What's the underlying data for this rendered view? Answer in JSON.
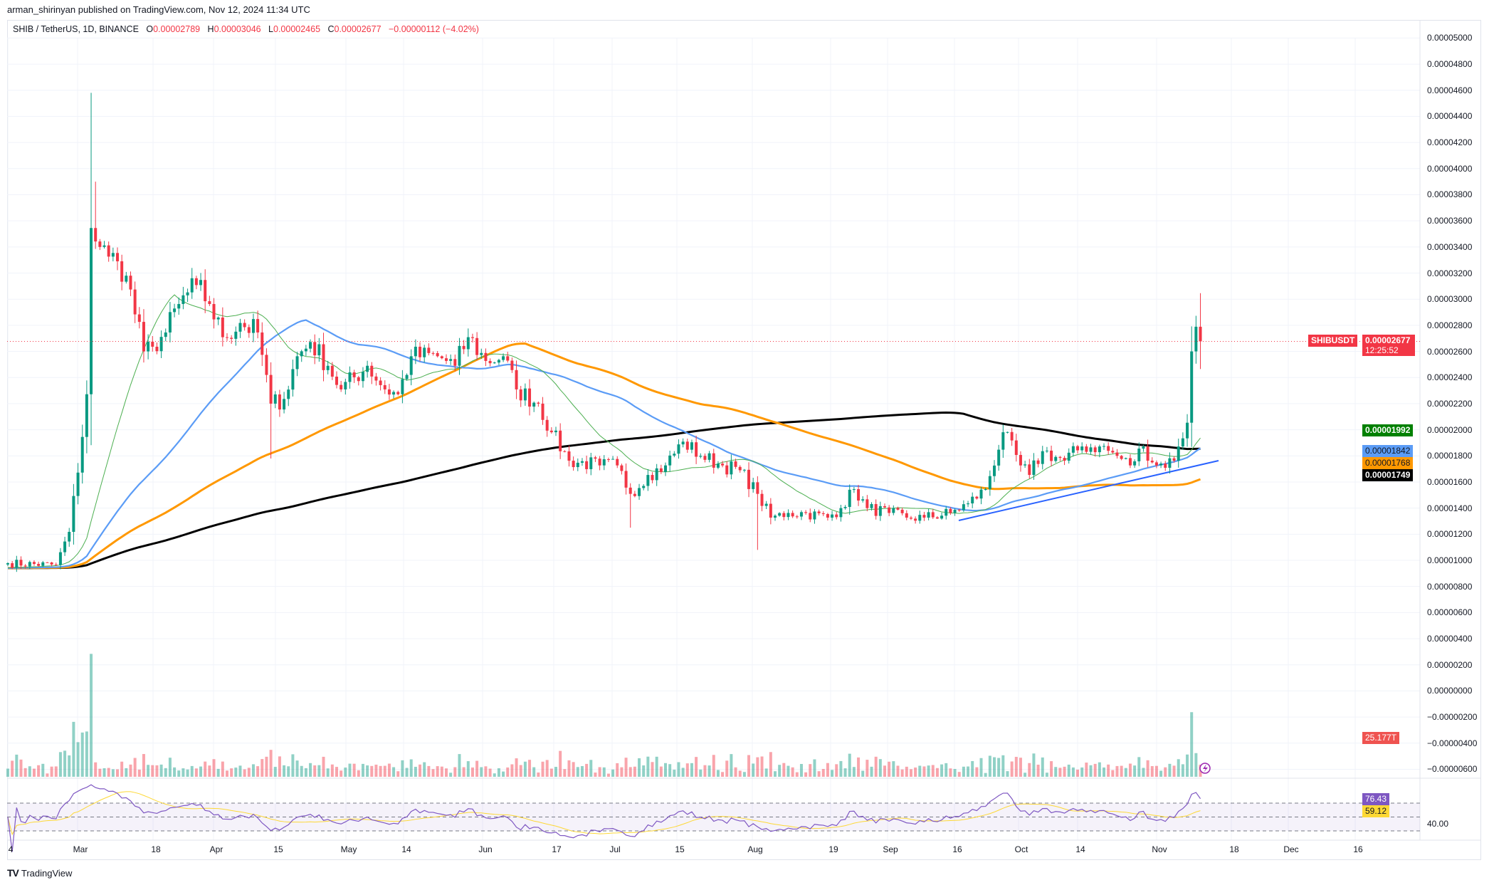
{
  "publisher": "arman_shirinyan published on TradingView.com, Nov 12, 2024 11:34 UTC",
  "legend": {
    "symbol": "SHIB / TetherUS, 1D, BINANCE",
    "o_label": "O",
    "open": "0.00002789",
    "h_label": "H",
    "high": "0.00003046",
    "l_label": "L",
    "low": "0.00002465",
    "c_label": "C",
    "close": "0.00002677",
    "change": "−0.00000112 (−4.02%)"
  },
  "price_axis": [
    "0.00005000",
    "0.00004800",
    "0.00004600",
    "0.00004400",
    "0.00004200",
    "0.00004000",
    "0.00003800",
    "0.00003600",
    "0.00003400",
    "0.00003200",
    "0.00003000",
    "0.00002800",
    "0.00002600",
    "0.00002400",
    "0.00002200",
    "0.00002000",
    "0.00001800",
    "0.00001600",
    "0.00001400",
    "0.00001200",
    "0.00001000",
    "0.00000800",
    "0.00000600",
    "0.00000400",
    "0.00000200",
    "0.00000000",
    "−0.00000200",
    "−0.00000400",
    "−0.00000600"
  ],
  "date_axis": [
    "4",
    "Mar",
    "18",
    "Apr",
    "15",
    "May",
    "14",
    "Jun",
    "17",
    "Jul",
    "15",
    "Aug",
    "19",
    "Sep",
    "16",
    "Oct",
    "14",
    "Nov",
    "18",
    "Dec",
    "16"
  ],
  "tags": {
    "symbol": "SHIBUSDT",
    "last_price": "0.00002677",
    "countdown": "12:25:52",
    "ma20": "0.00001992",
    "ma50": "0.00001842",
    "ma100": "0.00001768",
    "ma200": "0.00001749",
    "volume": "25.177T",
    "rsi": "76.43",
    "rsi_ma": "59.12",
    "rsi_level": "40.00"
  },
  "colors": {
    "up": "#089981",
    "down": "#f23645",
    "ma20": "#4caf50",
    "ma50": "#5b9cf6",
    "ma100": "#ff9800",
    "ma200": "#000000",
    "rsi": "#7e57c2",
    "rsi_ma": "#fdd835",
    "trendline": "#2962ff"
  },
  "footer": "TradingView",
  "chart_data": {
    "type": "candlestick",
    "title": "SHIB / TetherUS, 1D, BINANCE",
    "units": "price x 1e-8 USDT",
    "anchors_day_close": [
      [
        0,
        978
      ],
      [
        11,
        964
      ],
      [
        14,
        1218
      ],
      [
        17,
        1945
      ],
      [
        18,
        2272
      ],
      [
        19,
        3545
      ],
      [
        21,
        3400
      ],
      [
        23,
        3326
      ],
      [
        25,
        3290
      ],
      [
        27,
        3180
      ],
      [
        31,
        2600
      ],
      [
        33,
        2636
      ],
      [
        36,
        2745
      ],
      [
        39,
        2963
      ],
      [
        43,
        3108
      ],
      [
        46,
        2963
      ],
      [
        49,
        2709
      ],
      [
        53,
        2818
      ],
      [
        57,
        2745
      ],
      [
        60,
        2200
      ],
      [
        63,
        2236
      ],
      [
        66,
        2563
      ],
      [
        69,
        2672
      ],
      [
        73,
        2490
      ],
      [
        76,
        2309
      ],
      [
        82,
        2490
      ],
      [
        86,
        2309
      ],
      [
        89,
        2272
      ],
      [
        92,
        2563
      ],
      [
        98,
        2563
      ],
      [
        102,
        2490
      ],
      [
        105,
        2709
      ],
      [
        109,
        2527
      ],
      [
        113,
        2563
      ],
      [
        116,
        2309
      ],
      [
        121,
        2200
      ],
      [
        124,
        1981
      ],
      [
        128,
        1763
      ],
      [
        135,
        1727
      ],
      [
        139,
        1727
      ],
      [
        142,
        1509
      ],
      [
        146,
        1654
      ],
      [
        150,
        1727
      ],
      [
        154,
        1909
      ],
      [
        158,
        1800
      ],
      [
        163,
        1727
      ],
      [
        167,
        1690
      ],
      [
        171,
        1509
      ],
      [
        174,
        1327
      ],
      [
        178,
        1363
      ],
      [
        182,
        1363
      ],
      [
        187,
        1327
      ],
      [
        190,
        1400
      ],
      [
        193,
        1545
      ],
      [
        196,
        1400
      ],
      [
        201,
        1363
      ],
      [
        205,
        1327
      ],
      [
        209,
        1327
      ],
      [
        215,
        1363
      ],
      [
        219,
        1436
      ],
      [
        223,
        1545
      ],
      [
        227,
        1981
      ],
      [
        231,
        1727
      ],
      [
        233,
        1654
      ],
      [
        236,
        1836
      ],
      [
        241,
        1763
      ],
      [
        245,
        1872
      ],
      [
        249,
        1872
      ],
      [
        253,
        1800
      ],
      [
        256,
        1727
      ],
      [
        259,
        1872
      ],
      [
        262,
        1727
      ],
      [
        266,
        1763
      ],
      [
        267,
        1872
      ],
      [
        269,
        2054
      ],
      [
        270,
        2600
      ],
      [
        271,
        2789
      ],
      [
        272,
        2677
      ]
    ],
    "last_candle": {
      "open": 2789,
      "high": 3046,
      "low": 2465,
      "close": 2677
    },
    "moving_averages": {
      "sma20": 1992,
      "sma50": 1842,
      "sma100": 1768,
      "sma200": 1749
    },
    "rsi": {
      "value": 76.43,
      "ma": 59.12,
      "upper": 70,
      "lower": 30
    },
    "ylim": [
      800,
      5000
    ]
  }
}
